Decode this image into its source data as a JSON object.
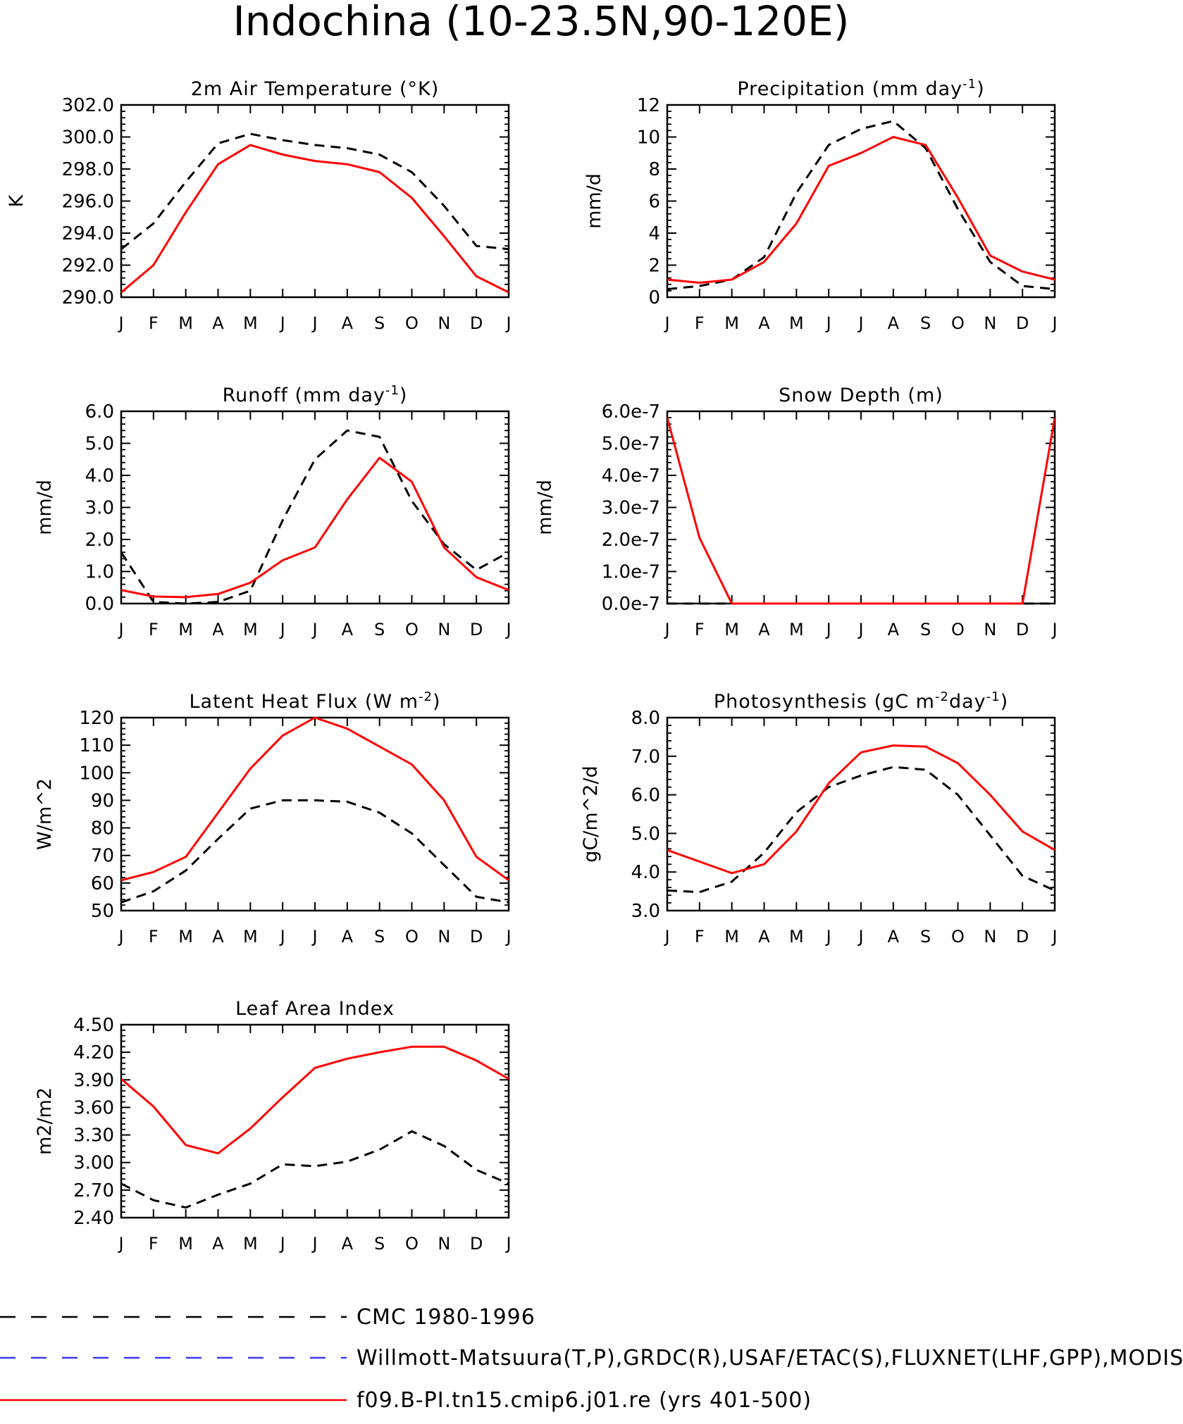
{
  "title": "Indochina (10-23.5N,90-120E)",
  "legend": [
    {
      "name": "CMC 1980-1996",
      "color": "#000000",
      "style": "dashed"
    },
    {
      "name": "Willmott-Matsuura(T,P),GRDC(R),USAF/ETAC(S),FLUXNET(LHF,GPP),MODIS(L",
      "color": "#3a3aff",
      "style": "dashed"
    },
    {
      "name": "f09.B-PI.tn15.cmip6.j01.re (yrs 401-500)",
      "color": "#ff0000",
      "style": "solid"
    }
  ],
  "months": [
    "J",
    "F",
    "M",
    "A",
    "M",
    "J",
    "J",
    "A",
    "S",
    "O",
    "N",
    "D",
    "J"
  ],
  "chart_data": [
    {
      "type": "line",
      "title": "2m Air Temperature (°K)",
      "ylabel": "K",
      "ylim": [
        290,
        302
      ],
      "yticks": [
        290,
        292,
        294,
        296,
        298,
        300,
        302
      ],
      "yticklabels": [
        "290.0",
        "292.0",
        "294.0",
        "296.0",
        "298.0",
        "300.0",
        "302.0"
      ],
      "categories": [
        "J",
        "F",
        "M",
        "A",
        "M",
        "J",
        "J",
        "A",
        "S",
        "O",
        "N",
        "D",
        "J"
      ],
      "series": [
        {
          "name": "CMC 1980-1996",
          "values": [
            293.0,
            294.6,
            297.2,
            299.6,
            300.2,
            299.8,
            299.5,
            299.3,
            298.9,
            297.8,
            295.7,
            293.2,
            293.0
          ]
        },
        {
          "name": "f09.B-PI.tn15.cmip6.j01.re (yrs 401-500)",
          "values": [
            290.3,
            292.0,
            295.3,
            298.3,
            299.5,
            298.9,
            298.5,
            298.3,
            297.8,
            296.2,
            293.8,
            291.3,
            290.3
          ]
        }
      ]
    },
    {
      "type": "line",
      "title": "Precipitation (mm day-1)",
      "ylabel": "mm/d",
      "ylim": [
        0,
        12
      ],
      "yticks": [
        0,
        2,
        4,
        6,
        8,
        10,
        12
      ],
      "yticklabels": [
        "0",
        "2",
        "4",
        "6",
        "8",
        "10",
        "12"
      ],
      "categories": [
        "J",
        "F",
        "M",
        "A",
        "M",
        "J",
        "J",
        "A",
        "S",
        "O",
        "N",
        "D",
        "J"
      ],
      "series": [
        {
          "name": "CMC 1980-1996",
          "values": [
            0.5,
            0.7,
            1.1,
            2.5,
            6.5,
            9.5,
            10.5,
            11.0,
            9.3,
            5.5,
            2.2,
            0.7,
            0.5
          ]
        },
        {
          "name": "f09.B-PI.tn15.cmip6.j01.re (yrs 401-500)",
          "values": [
            1.1,
            0.9,
            1.1,
            2.2,
            4.6,
            8.2,
            9.0,
            10.0,
            9.5,
            6.2,
            2.6,
            1.6,
            1.1
          ]
        }
      ]
    },
    {
      "type": "line",
      "title": "Runoff (mm day-1)",
      "ylabel": "mm/d",
      "ylim": [
        0,
        6
      ],
      "yticks": [
        0,
        1,
        2,
        3,
        4,
        5,
        6
      ],
      "yticklabels": [
        "0.0",
        "1.0",
        "2.0",
        "3.0",
        "4.0",
        "5.0",
        "6.0"
      ],
      "categories": [
        "J",
        "F",
        "M",
        "A",
        "M",
        "J",
        "J",
        "A",
        "S",
        "O",
        "N",
        "D",
        "J"
      ],
      "series": [
        {
          "name": "CMC 1980-1996",
          "values": [
            1.6,
            0.05,
            0.0,
            0.05,
            0.4,
            2.6,
            4.5,
            5.4,
            5.2,
            3.2,
            1.85,
            1.05,
            1.6
          ]
        },
        {
          "name": "f09.B-PI.tn15.cmip6.j01.re (yrs 401-500)",
          "values": [
            0.42,
            0.22,
            0.2,
            0.3,
            0.65,
            1.35,
            1.75,
            3.25,
            4.55,
            3.8,
            1.75,
            0.82,
            0.42
          ]
        }
      ]
    },
    {
      "type": "line",
      "title": "Snow Depth (m)",
      "ylabel": "mm/d",
      "ylim": [
        0,
        6e-07
      ],
      "yticks": [
        0,
        1e-07,
        2e-07,
        3e-07,
        4e-07,
        5e-07,
        6e-07
      ],
      "yticklabels": [
        "0.0e-7",
        "1.0e-7",
        "2.0e-7",
        "3.0e-7",
        "4.0e-7",
        "5.0e-7",
        "6.0e-7"
      ],
      "categories": [
        "J",
        "F",
        "M",
        "A",
        "M",
        "J",
        "J",
        "A",
        "S",
        "O",
        "N",
        "D",
        "J"
      ],
      "series": [
        {
          "name": "CMC 1980-1996",
          "values": [
            0,
            0,
            0,
            0,
            0,
            0,
            0,
            0,
            0,
            0,
            0,
            0,
            0
          ]
        },
        {
          "name": "f09.B-PI.tn15.cmip6.j01.re (yrs 401-500)",
          "values": [
            5.8e-07,
            2.05e-07,
            0,
            0,
            0,
            0,
            0,
            0,
            0,
            0,
            0,
            0,
            5.8e-07
          ]
        }
      ]
    },
    {
      "type": "line",
      "title": "Latent Heat Flux (W m-2)",
      "ylabel": "W/m^2",
      "ylim": [
        50,
        120
      ],
      "yticks": [
        50,
        60,
        70,
        80,
        90,
        100,
        110,
        120
      ],
      "yticklabels": [
        "50",
        "60",
        "70",
        "80",
        "90",
        "100",
        "110",
        "120"
      ],
      "categories": [
        "J",
        "F",
        "M",
        "A",
        "M",
        "J",
        "J",
        "A",
        "S",
        "O",
        "N",
        "D",
        "J"
      ],
      "series": [
        {
          "name": "CMC 1980-1996",
          "values": [
            53,
            57,
            64.5,
            76,
            87,
            90,
            90,
            89.5,
            85.5,
            78,
            66.5,
            55,
            53
          ]
        },
        {
          "name": "f09.B-PI.tn15.cmip6.j01.re (yrs 401-500)",
          "values": [
            61,
            64,
            69.5,
            85.5,
            101.5,
            113.5,
            120,
            116,
            109.5,
            103,
            90,
            69.5,
            61
          ]
        }
      ]
    },
    {
      "type": "line",
      "title": "Photosynthesis (gC m-2day-1)",
      "ylabel": "gC/m^2/d",
      "ylim": [
        3,
        8
      ],
      "yticks": [
        3,
        4,
        5,
        6,
        7,
        8
      ],
      "yticklabels": [
        "3.0",
        "4.0",
        "5.0",
        "6.0",
        "7.0",
        "8.0"
      ],
      "categories": [
        "J",
        "F",
        "M",
        "A",
        "M",
        "J",
        "J",
        "A",
        "S",
        "O",
        "N",
        "D",
        "J"
      ],
      "series": [
        {
          "name": "CMC 1980-1996",
          "values": [
            3.52,
            3.48,
            3.75,
            4.5,
            5.55,
            6.2,
            6.5,
            6.72,
            6.65,
            6.0,
            4.95,
            3.9,
            3.52
          ]
        },
        {
          "name": "f09.B-PI.tn15.cmip6.j01.re (yrs 401-500)",
          "values": [
            4.57,
            4.27,
            3.97,
            4.2,
            5.05,
            6.3,
            7.1,
            7.28,
            7.25,
            6.82,
            6.0,
            5.05,
            4.57
          ]
        }
      ]
    },
    {
      "type": "line",
      "title": "Leaf Area Index",
      "ylabel": "m2/m2",
      "ylim": [
        2.4,
        4.5
      ],
      "yticks": [
        2.4,
        2.7,
        3.0,
        3.3,
        3.6,
        3.9,
        4.2,
        4.5
      ],
      "yticklabels": [
        "2.40",
        "2.70",
        "3.00",
        "3.30",
        "3.60",
        "3.90",
        "4.20",
        "4.50"
      ],
      "categories": [
        "J",
        "F",
        "M",
        "A",
        "M",
        "J",
        "J",
        "A",
        "S",
        "O",
        "N",
        "D",
        "J"
      ],
      "series": [
        {
          "name": "CMC 1980-1996",
          "values": [
            2.77,
            2.59,
            2.51,
            2.65,
            2.77,
            2.98,
            2.96,
            3.01,
            3.14,
            3.34,
            3.18,
            2.92,
            2.77
          ]
        },
        {
          "name": "f09.B-PI.tn15.cmip6.j01.re (yrs 401-500)",
          "values": [
            3.91,
            3.61,
            3.19,
            3.1,
            3.37,
            3.71,
            4.03,
            4.13,
            4.2,
            4.26,
            4.26,
            4.11,
            3.91
          ]
        }
      ]
    }
  ]
}
